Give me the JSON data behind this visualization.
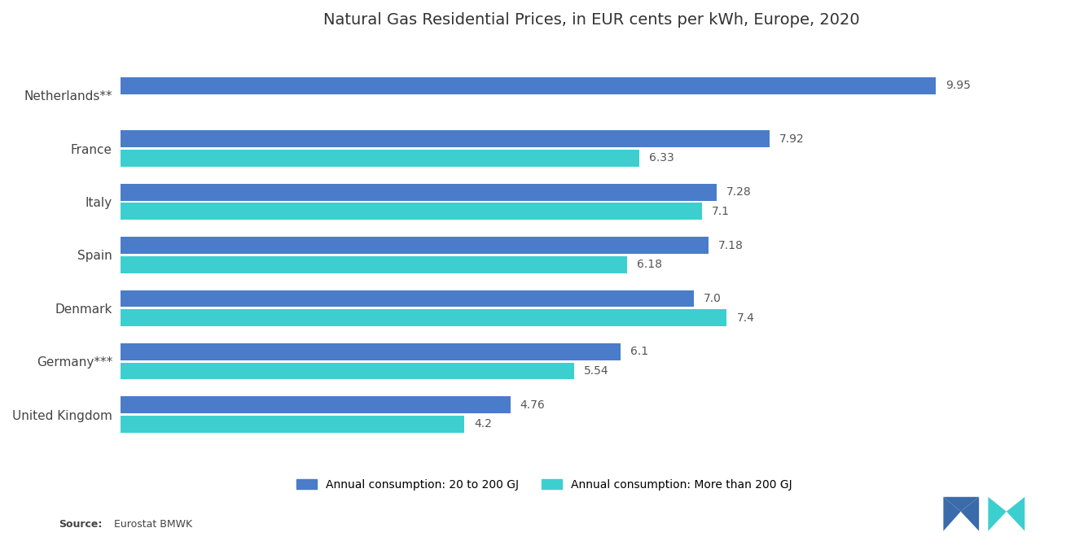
{
  "title": "Natural Gas Residential Prices, in EUR cents per kWh, Europe, 2020",
  "categories": [
    "Netherlands**",
    "France",
    "Italy",
    "Spain",
    "Denmark",
    "Germany***",
    "United Kingdom"
  ],
  "series1_label": "Annual consumption: 20 to 200 GJ",
  "series2_label": "Annual consumption: More than 200 GJ",
  "series1_values": [
    9.95,
    7.92,
    7.28,
    7.18,
    7.0,
    6.1,
    4.76
  ],
  "series2_values": [
    null,
    6.33,
    7.1,
    6.18,
    7.4,
    5.54,
    4.2
  ],
  "series1_color": "#4A7CC9",
  "series2_color": "#3DCFCF",
  "background_color": "#FFFFFF",
  "title_fontsize": 14,
  "label_fontsize": 11,
  "bar_label_fontsize": 10,
  "xlim": [
    0,
    11.5
  ]
}
